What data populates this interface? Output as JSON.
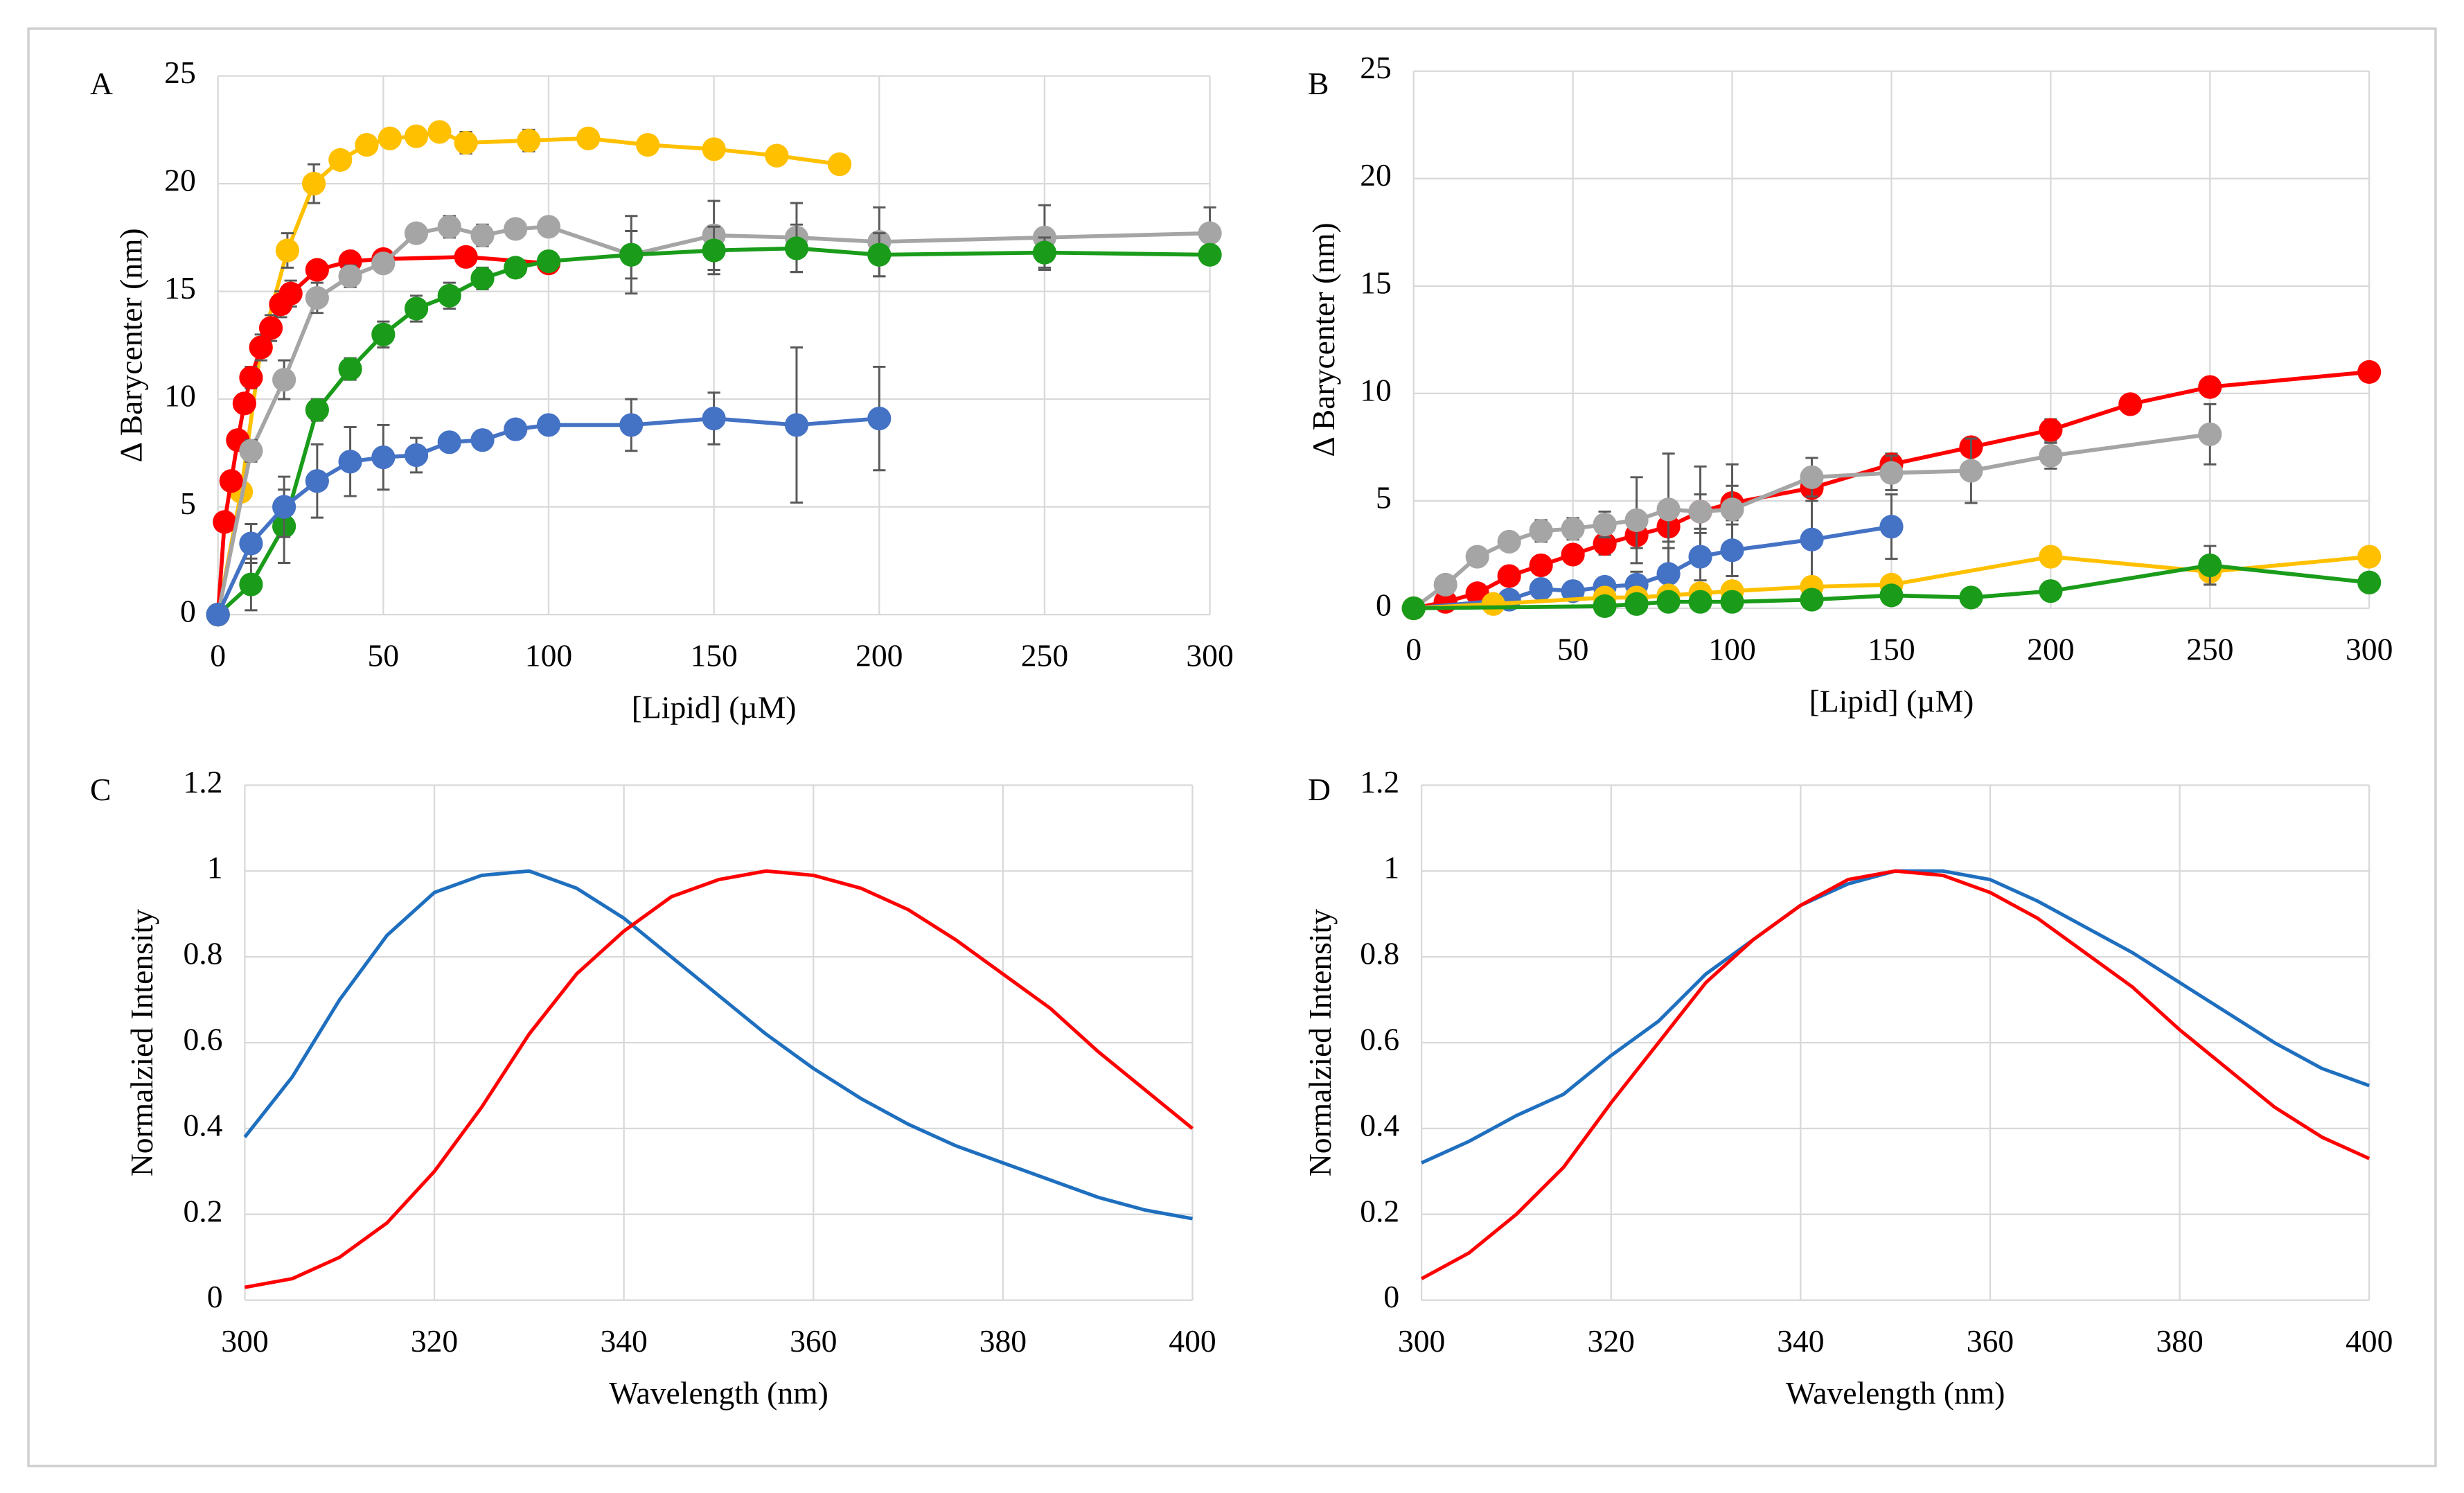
{
  "chart_data": [
    {
      "type": "line",
      "label": "A",
      "x_label": "[Lipid]  (µM)",
      "y_label": "Δ Barycenter (nm)",
      "markers": true,
      "grid": true,
      "xlim": [
        0,
        300
      ],
      "xticks": [
        0,
        50,
        100,
        150,
        200,
        250,
        300
      ],
      "ylim": [
        0,
        25
      ],
      "yticks": [
        0,
        5,
        10,
        15,
        20,
        25
      ],
      "series": [
        {
          "color": "#ffc000",
          "x": [
            0,
            7,
            13,
            21,
            29,
            37,
            45,
            52,
            60,
            67,
            75,
            94,
            112,
            130,
            150,
            169,
            188
          ],
          "values": [
            0,
            5.7,
            12.4,
            16.9,
            20.0,
            21.1,
            21.8,
            22.1,
            22.2,
            22.4,
            21.9,
            22.0,
            22.1,
            21.8,
            21.6,
            21.3,
            20.9
          ],
          "errors": [
            0,
            0.3,
            0.4,
            0.8,
            0.9,
            0.3,
            0.3,
            0.3,
            0.3,
            0.3,
            0.5,
            0.5,
            0.3,
            0.3,
            0.3,
            0.3,
            0.3
          ]
        },
        {
          "color": "#ff0000",
          "x": [
            0,
            2,
            4,
            6,
            8,
            10,
            13,
            16,
            19,
            22,
            30,
            40,
            50,
            75,
            100
          ],
          "values": [
            0,
            4.3,
            6.2,
            8.1,
            9.8,
            11.0,
            12.4,
            13.3,
            14.4,
            14.9,
            16.0,
            16.4,
            16.5,
            16.6,
            16.3
          ],
          "errors": [
            0,
            0.3,
            0.3,
            0.4,
            0.4,
            0.5,
            0.6,
            0.6,
            0.6,
            0.6,
            0.4,
            0.3,
            0.3,
            0.3,
            0.3
          ]
        },
        {
          "color": "#a5a5a5",
          "x": [
            0,
            10,
            20,
            30,
            40,
            50,
            60,
            70,
            80,
            90,
            100,
            125,
            150,
            175,
            200,
            250,
            300
          ],
          "values": [
            0,
            7.6,
            10.9,
            14.7,
            15.7,
            16.3,
            17.7,
            18.0,
            17.6,
            17.9,
            18.0,
            16.7,
            17.6,
            17.5,
            17.3,
            17.5,
            17.7
          ],
          "errors": [
            0,
            0.5,
            0.9,
            0.7,
            0.5,
            0.4,
            0.4,
            0.5,
            0.5,
            0.4,
            0.4,
            1.8,
            1.6,
            1.6,
            1.6,
            1.5,
            1.2
          ]
        },
        {
          "color": "#1a9c1a",
          "x": [
            0,
            10,
            20,
            30,
            40,
            50,
            60,
            70,
            80,
            90,
            100,
            125,
            150,
            175,
            200,
            250,
            300
          ],
          "values": [
            0,
            1.4,
            4.1,
            9.5,
            11.4,
            13.0,
            14.2,
            14.8,
            15.6,
            16.1,
            16.4,
            16.7,
            16.9,
            17.0,
            16.7,
            16.8,
            16.7
          ],
          "errors": [
            0,
            1.2,
            1.7,
            0.5,
            0.5,
            0.6,
            0.6,
            0.6,
            0.5,
            0.4,
            0.3,
            1.1,
            1.1,
            1.1,
            1.0,
            0.7,
            0.3
          ]
        },
        {
          "color": "#4472c4",
          "x": [
            0,
            10,
            20,
            30,
            40,
            50,
            60,
            70,
            80,
            90,
            100,
            125,
            150,
            175,
            200
          ],
          "values": [
            0,
            3.3,
            5.0,
            6.2,
            7.1,
            7.3,
            7.4,
            8.0,
            8.1,
            8.6,
            8.8,
            8.8,
            9.1,
            8.8,
            9.1
          ],
          "errors": [
            0,
            0.9,
            1.4,
            1.7,
            1.6,
            1.5,
            0.8,
            0.4,
            0.3,
            0.3,
            0.3,
            1.2,
            1.2,
            3.6,
            2.4
          ]
        }
      ]
    },
    {
      "type": "line",
      "label": "B",
      "x_label": "[Lipid]  (µM)",
      "y_label": "Δ Barycenter (nm)",
      "markers": true,
      "grid": true,
      "xlim": [
        0,
        300
      ],
      "xticks": [
        0,
        50,
        100,
        150,
        200,
        250,
        300
      ],
      "ylim": [
        0,
        25
      ],
      "yticks": [
        0,
        5,
        10,
        15,
        20,
        25
      ],
      "series": [
        {
          "color": "#ff0000",
          "x": [
            0,
            10,
            20,
            30,
            40,
            50,
            60,
            70,
            80,
            90,
            100,
            125,
            150,
            175,
            200,
            225,
            250,
            300
          ],
          "values": [
            0,
            0.3,
            0.7,
            1.5,
            2.0,
            2.5,
            3.0,
            3.4,
            3.8,
            4.5,
            4.9,
            5.6,
            6.7,
            7.5,
            8.3,
            9.5,
            10.3,
            11.0
          ],
          "errors": [
            0,
            0.2,
            0.3,
            0.3,
            0.4,
            0.4,
            0.5,
            0.6,
            0.7,
            0.8,
            0.8,
            0.6,
            0.5,
            0.4,
            0.5,
            0.3,
            0.3,
            0.3
          ]
        },
        {
          "color": "#a5a5a5",
          "x": [
            0,
            10,
            20,
            30,
            40,
            50,
            60,
            70,
            80,
            90,
            100,
            125,
            150,
            175,
            200,
            250
          ],
          "values": [
            0,
            1.1,
            2.4,
            3.1,
            3.6,
            3.7,
            3.9,
            4.1,
            4.6,
            4.5,
            4.6,
            6.1,
            6.3,
            6.4,
            7.1,
            8.1
          ],
          "errors": [
            0,
            0.3,
            0.4,
            0.4,
            0.5,
            0.5,
            0.6,
            2.0,
            2.6,
            2.1,
            2.1,
            0.9,
            0.8,
            1.5,
            0.6,
            1.4
          ]
        },
        {
          "color": "#4472c4",
          "x": [
            0,
            30,
            40,
            50,
            60,
            70,
            80,
            90,
            100,
            125,
            150
          ],
          "values": [
            0,
            0.4,
            0.9,
            0.8,
            1.0,
            1.1,
            1.6,
            2.4,
            2.7,
            3.2,
            3.8
          ],
          "errors": [
            0,
            0.2,
            0.3,
            0.3,
            0.4,
            0.6,
            1.2,
            1.1,
            1.2,
            1.8,
            1.5
          ]
        },
        {
          "color": "#ffc000",
          "x": [
            0,
            25,
            60,
            70,
            80,
            90,
            100,
            125,
            150,
            200,
            250,
            300
          ],
          "values": [
            0,
            0.2,
            0.5,
            0.5,
            0.6,
            0.7,
            0.8,
            1.0,
            1.1,
            2.4,
            1.7,
            2.4
          ],
          "errors": [
            0,
            0.2,
            0.2,
            0.2,
            0.2,
            0.2,
            0.2,
            0.2,
            0.3,
            0.4,
            0.6,
            0.3
          ]
        },
        {
          "color": "#1a9c1a",
          "x": [
            0,
            60,
            70,
            80,
            90,
            100,
            125,
            150,
            175,
            200,
            250,
            300
          ],
          "values": [
            0,
            0.1,
            0.2,
            0.3,
            0.3,
            0.3,
            0.4,
            0.6,
            0.5,
            0.8,
            2.0,
            1.2
          ],
          "errors": [
            0,
            0.1,
            0.1,
            0.1,
            0.1,
            0.1,
            0.1,
            0.2,
            0.2,
            0.2,
            0.9,
            0.2
          ]
        }
      ]
    },
    {
      "type": "line",
      "label": "C",
      "x_label": "Wavelength (nm)",
      "y_label": "Normalzied  Intensity",
      "markers": false,
      "grid": true,
      "xlim": [
        300,
        400
      ],
      "xticks": [
        300,
        320,
        340,
        360,
        380,
        400
      ],
      "ylim": [
        0,
        1.2
      ],
      "yticks": [
        0,
        0.2,
        0.4,
        0.6,
        0.8,
        1,
        1.2
      ],
      "series": [
        {
          "color": "#1f6fbf",
          "x": [
            300,
            305,
            310,
            315,
            320,
            325,
            330,
            335,
            340,
            345,
            350,
            355,
            360,
            365,
            370,
            375,
            380,
            385,
            390,
            395,
            400
          ],
          "values": [
            0.38,
            0.52,
            0.7,
            0.85,
            0.95,
            0.99,
            1.0,
            0.96,
            0.89,
            0.8,
            0.71,
            0.62,
            0.54,
            0.47,
            0.41,
            0.36,
            0.32,
            0.28,
            0.24,
            0.21,
            0.19
          ]
        },
        {
          "color": "#ff0000",
          "x": [
            300,
            305,
            310,
            315,
            320,
            325,
            330,
            335,
            340,
            345,
            350,
            355,
            360,
            365,
            370,
            375,
            380,
            385,
            390,
            395,
            400
          ],
          "values": [
            0.03,
            0.05,
            0.1,
            0.18,
            0.3,
            0.45,
            0.62,
            0.76,
            0.86,
            0.94,
            0.98,
            1.0,
            0.99,
            0.96,
            0.91,
            0.84,
            0.76,
            0.68,
            0.58,
            0.49,
            0.4
          ]
        }
      ]
    },
    {
      "type": "line",
      "label": "D",
      "x_label": "Wavelength (nm)",
      "y_label": "Normalzied  Intensity",
      "markers": false,
      "grid": true,
      "xlim": [
        300,
        400
      ],
      "xticks": [
        300,
        320,
        340,
        360,
        380,
        400
      ],
      "ylim": [
        0,
        1.2
      ],
      "yticks": [
        0,
        0.2,
        0.4,
        0.6,
        0.8,
        1,
        1.2
      ],
      "series": [
        {
          "color": "#1f6fbf",
          "x": [
            300,
            305,
            310,
            315,
            320,
            325,
            330,
            335,
            340,
            345,
            350,
            355,
            360,
            365,
            370,
            375,
            380,
            385,
            390,
            395,
            400
          ],
          "values": [
            0.32,
            0.37,
            0.43,
            0.48,
            0.57,
            0.65,
            0.76,
            0.84,
            0.92,
            0.97,
            1.0,
            1.0,
            0.98,
            0.93,
            0.87,
            0.81,
            0.74,
            0.67,
            0.6,
            0.54,
            0.5
          ]
        },
        {
          "color": "#ff0000",
          "x": [
            300,
            305,
            310,
            315,
            320,
            325,
            330,
            335,
            340,
            345,
            350,
            355,
            360,
            365,
            370,
            375,
            380,
            385,
            390,
            395,
            400
          ],
          "values": [
            0.05,
            0.11,
            0.2,
            0.31,
            0.46,
            0.6,
            0.74,
            0.84,
            0.92,
            0.98,
            1.0,
            0.99,
            0.95,
            0.89,
            0.81,
            0.73,
            0.63,
            0.54,
            0.45,
            0.38,
            0.33
          ]
        }
      ]
    }
  ]
}
